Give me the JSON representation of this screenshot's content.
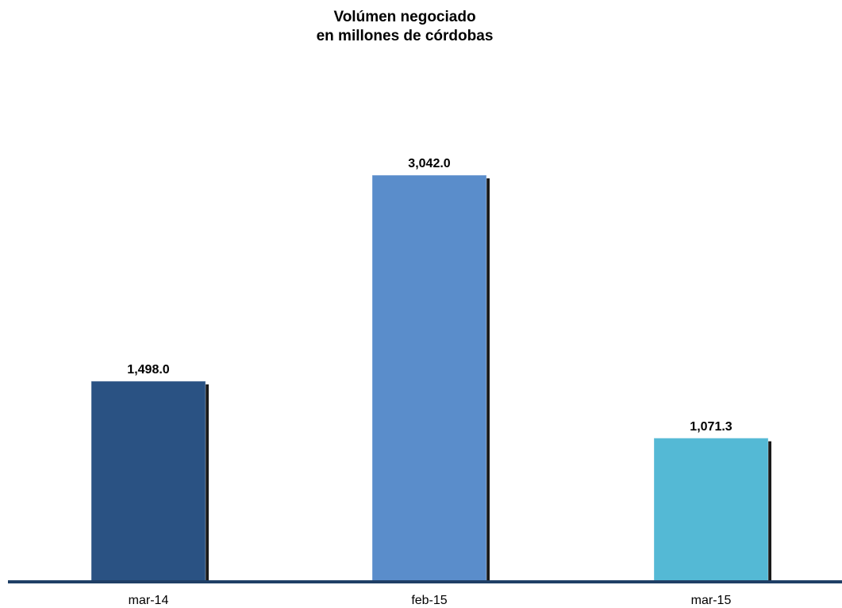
{
  "chart_data": {
    "type": "bar",
    "title": [
      "Volúmen negociado",
      "en millones de córdobas"
    ],
    "categories": [
      "mar-14",
      "feb-15",
      "mar-15"
    ],
    "values": [
      1498.0,
      3042.0,
      1071.3
    ],
    "value_labels": [
      "1,498.0",
      "3,042.0",
      "1,071.3"
    ],
    "colors": [
      "#2a5283",
      "#5a8dcb",
      "#54b9d5"
    ]
  }
}
